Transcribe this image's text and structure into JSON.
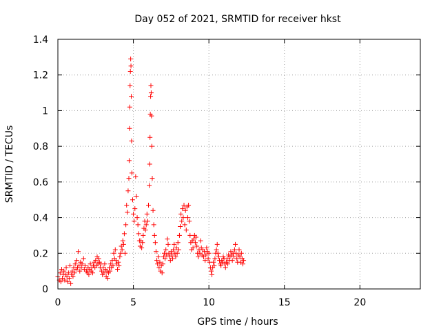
{
  "chart_data": {
    "type": "scatter",
    "title": "Day 052 of 2021, SRMTID for receiver hkst",
    "xlabel": "GPS time / hours",
    "ylabel": "SRMTID / TECUs",
    "xlim": [
      0,
      24
    ],
    "ylim": [
      0,
      1.4
    ],
    "xticks": [
      0,
      5,
      10,
      15,
      20
    ],
    "xtick_labels": [
      "0",
      "5",
      "10",
      "15",
      "20"
    ],
    "yticks": [
      0,
      0.2,
      0.4,
      0.6,
      0.8,
      1,
      1.2,
      1.4
    ],
    "ytick_labels": [
      "0",
      "0.2",
      "0.4",
      "0.6",
      "0.8",
      "1",
      "1.2",
      "1.4"
    ],
    "grid": true,
    "marker": "+",
    "marker_color": "#ff0000",
    "series": [
      {
        "name": "SRMTID",
        "description": "Estimated from the plotted scatter; values approximate",
        "points": [
          [
            0.0,
            0.07
          ],
          [
            0.1,
            0.05
          ],
          [
            0.15,
            0.09
          ],
          [
            0.2,
            0.04
          ],
          [
            0.25,
            0.11
          ],
          [
            0.3,
            0.06
          ],
          [
            0.35,
            0.08
          ],
          [
            0.4,
            0.1
          ],
          [
            0.45,
            0.05
          ],
          [
            0.5,
            0.08
          ],
          [
            0.55,
            0.12
          ],
          [
            0.6,
            0.07
          ],
          [
            0.65,
            0.04
          ],
          [
            0.7,
            0.09
          ],
          [
            0.75,
            0.06
          ],
          [
            0.8,
            0.13
          ],
          [
            0.85,
            0.03
          ],
          [
            0.9,
            0.08
          ],
          [
            0.95,
            0.1
          ],
          [
            1.0,
            0.07
          ],
          [
            1.05,
            0.12
          ],
          [
            1.1,
            0.09
          ],
          [
            1.15,
            0.14
          ],
          [
            1.2,
            0.11
          ],
          [
            1.25,
            0.16
          ],
          [
            1.3,
            0.12
          ],
          [
            1.35,
            0.21
          ],
          [
            1.4,
            0.13
          ],
          [
            1.45,
            0.1
          ],
          [
            1.5,
            0.15
          ],
          [
            1.55,
            0.12
          ],
          [
            1.6,
            0.14
          ],
          [
            1.7,
            0.17
          ],
          [
            1.75,
            0.11
          ],
          [
            1.8,
            0.13
          ],
          [
            1.9,
            0.1
          ],
          [
            1.95,
            0.09
          ],
          [
            2.0,
            0.12
          ],
          [
            2.05,
            0.08
          ],
          [
            2.1,
            0.11
          ],
          [
            2.15,
            0.14
          ],
          [
            2.2,
            0.1
          ],
          [
            2.25,
            0.12
          ],
          [
            2.3,
            0.09
          ],
          [
            2.35,
            0.13
          ],
          [
            2.4,
            0.15
          ],
          [
            2.45,
            0.12
          ],
          [
            2.5,
            0.16
          ],
          [
            2.55,
            0.13
          ],
          [
            2.6,
            0.18
          ],
          [
            2.65,
            0.14
          ],
          [
            2.7,
            0.17
          ],
          [
            2.75,
            0.15
          ],
          [
            2.8,
            0.12
          ],
          [
            2.85,
            0.14
          ],
          [
            2.9,
            0.1
          ],
          [
            2.95,
            0.08
          ],
          [
            3.0,
            0.12
          ],
          [
            3.05,
            0.09
          ],
          [
            3.1,
            0.14
          ],
          [
            3.15,
            0.11
          ],
          [
            3.2,
            0.07
          ],
          [
            3.25,
            0.1
          ],
          [
            3.3,
            0.06
          ],
          [
            3.35,
            0.09
          ],
          [
            3.4,
            0.12
          ],
          [
            3.45,
            0.1
          ],
          [
            3.5,
            0.14
          ],
          [
            3.55,
            0.12
          ],
          [
            3.6,
            0.16
          ],
          [
            3.65,
            0.13
          ],
          [
            3.7,
            0.2
          ],
          [
            3.75,
            0.17
          ],
          [
            3.8,
            0.22
          ],
          [
            3.85,
            0.16
          ],
          [
            3.9,
            0.14
          ],
          [
            3.95,
            0.11
          ],
          [
            4.0,
            0.15
          ],
          [
            4.05,
            0.13
          ],
          [
            4.1,
            0.18
          ],
          [
            4.15,
            0.2
          ],
          [
            4.2,
            0.24
          ],
          [
            4.25,
            0.22
          ],
          [
            4.3,
            0.27
          ],
          [
            4.35,
            0.25
          ],
          [
            4.4,
            0.31
          ],
          [
            4.45,
            0.2
          ],
          [
            4.5,
            0.36
          ],
          [
            4.55,
            0.47
          ],
          [
            4.6,
            0.43
          ],
          [
            4.65,
            0.55
          ],
          [
            4.7,
            0.62
          ],
          [
            4.72,
            0.72
          ],
          [
            4.74,
            0.9
          ],
          [
            4.76,
            1.02
          ],
          [
            4.78,
            1.14
          ],
          [
            4.8,
            1.22
          ],
          [
            4.82,
            1.29
          ],
          [
            4.84,
            1.25
          ],
          [
            4.86,
            1.08
          ],
          [
            4.88,
            0.83
          ],
          [
            4.9,
            0.65
          ],
          [
            4.95,
            0.5
          ],
          [
            5.0,
            0.42
          ],
          [
            5.05,
            0.38
          ],
          [
            5.1,
            0.45
          ],
          [
            5.15,
            0.63
          ],
          [
            5.2,
            0.52
          ],
          [
            5.25,
            0.4
          ],
          [
            5.3,
            0.36
          ],
          [
            5.35,
            0.31
          ],
          [
            5.4,
            0.27
          ],
          [
            5.45,
            0.24
          ],
          [
            5.5,
            0.27
          ],
          [
            5.55,
            0.23
          ],
          [
            5.6,
            0.26
          ],
          [
            5.65,
            0.3
          ],
          [
            5.7,
            0.34
          ],
          [
            5.75,
            0.38
          ],
          [
            5.8,
            0.33
          ],
          [
            5.85,
            0.36
          ],
          [
            5.9,
            0.42
          ],
          [
            5.95,
            0.38
          ],
          [
            6.0,
            0.47
          ],
          [
            6.05,
            0.58
          ],
          [
            6.08,
            0.7
          ],
          [
            6.1,
            0.85
          ],
          [
            6.12,
            0.98
          ],
          [
            6.14,
            1.08
          ],
          [
            6.16,
            1.14
          ],
          [
            6.18,
            1.1
          ],
          [
            6.2,
            0.97
          ],
          [
            6.22,
            0.8
          ],
          [
            6.25,
            0.62
          ],
          [
            6.3,
            0.44
          ],
          [
            6.35,
            0.36
          ],
          [
            6.4,
            0.3
          ],
          [
            6.45,
            0.26
          ],
          [
            6.5,
            0.21
          ],
          [
            6.55,
            0.16
          ],
          [
            6.6,
            0.14
          ],
          [
            6.65,
            0.18
          ],
          [
            6.7,
            0.12
          ],
          [
            6.75,
            0.15
          ],
          [
            6.8,
            0.1
          ],
          [
            6.85,
            0.13
          ],
          [
            6.9,
            0.09
          ],
          [
            6.95,
            0.14
          ],
          [
            7.0,
            0.18
          ],
          [
            7.05,
            0.2
          ],
          [
            7.1,
            0.17
          ],
          [
            7.15,
            0.22
          ],
          [
            7.2,
            0.19
          ],
          [
            7.25,
            0.28
          ],
          [
            7.3,
            0.25
          ],
          [
            7.35,
            0.2
          ],
          [
            7.4,
            0.18
          ],
          [
            7.45,
            0.16
          ],
          [
            7.5,
            0.21
          ],
          [
            7.55,
            0.19
          ],
          [
            7.6,
            0.17
          ],
          [
            7.65,
            0.22
          ],
          [
            7.7,
            0.25
          ],
          [
            7.75,
            0.2
          ],
          [
            7.8,
            0.18
          ],
          [
            7.85,
            0.23
          ],
          [
            7.9,
            0.2
          ],
          [
            7.95,
            0.26
          ],
          [
            8.0,
            0.22
          ],
          [
            8.05,
            0.3
          ],
          [
            8.1,
            0.35
          ],
          [
            8.15,
            0.42
          ],
          [
            8.2,
            0.38
          ],
          [
            8.25,
            0.45
          ],
          [
            8.3,
            0.4
          ],
          [
            8.35,
            0.47
          ],
          [
            8.4,
            0.36
          ],
          [
            8.45,
            0.44
          ],
          [
            8.5,
            0.33
          ],
          [
            8.55,
            0.46
          ],
          [
            8.6,
            0.4
          ],
          [
            8.65,
            0.47
          ],
          [
            8.7,
            0.38
          ],
          [
            8.75,
            0.3
          ],
          [
            8.8,
            0.26
          ],
          [
            8.85,
            0.22
          ],
          [
            8.9,
            0.27
          ],
          [
            8.95,
            0.23
          ],
          [
            9.0,
            0.28
          ],
          [
            9.05,
            0.3
          ],
          [
            9.1,
            0.26
          ],
          [
            9.15,
            0.29
          ],
          [
            9.2,
            0.24
          ],
          [
            9.25,
            0.2
          ],
          [
            9.3,
            0.18
          ],
          [
            9.35,
            0.22
          ],
          [
            9.4,
            0.2
          ],
          [
            9.45,
            0.27
          ],
          [
            9.5,
            0.23
          ],
          [
            9.55,
            0.19
          ],
          [
            9.6,
            0.22
          ],
          [
            9.65,
            0.18
          ],
          [
            9.7,
            0.21
          ],
          [
            9.75,
            0.16
          ],
          [
            9.8,
            0.19
          ],
          [
            9.85,
            0.23
          ],
          [
            9.9,
            0.21
          ],
          [
            9.95,
            0.17
          ],
          [
            10.0,
            0.2
          ],
          [
            10.05,
            0.15
          ],
          [
            10.1,
            0.12
          ],
          [
            10.15,
            0.1
          ],
          [
            10.2,
            0.08
          ],
          [
            10.25,
            0.12
          ],
          [
            10.3,
            0.15
          ],
          [
            10.35,
            0.13
          ],
          [
            10.4,
            0.17
          ],
          [
            10.45,
            0.2
          ],
          [
            10.5,
            0.22
          ],
          [
            10.55,
            0.25
          ],
          [
            10.6,
            0.2
          ],
          [
            10.65,
            0.18
          ],
          [
            10.7,
            0.16
          ],
          [
            10.75,
            0.14
          ],
          [
            10.8,
            0.13
          ],
          [
            10.85,
            0.16
          ],
          [
            10.9,
            0.15
          ],
          [
            10.95,
            0.18
          ],
          [
            11.0,
            0.17
          ],
          [
            11.05,
            0.14
          ],
          [
            11.1,
            0.12
          ],
          [
            11.15,
            0.15
          ],
          [
            11.2,
            0.17
          ],
          [
            11.25,
            0.14
          ],
          [
            11.3,
            0.19
          ],
          [
            11.35,
            0.16
          ],
          [
            11.4,
            0.18
          ],
          [
            11.45,
            0.21
          ],
          [
            11.5,
            0.19
          ],
          [
            11.55,
            0.16
          ],
          [
            11.6,
            0.2
          ],
          [
            11.65,
            0.18
          ],
          [
            11.7,
            0.22
          ],
          [
            11.75,
            0.25
          ],
          [
            11.8,
            0.2
          ],
          [
            11.85,
            0.17
          ],
          [
            11.9,
            0.15
          ],
          [
            11.95,
            0.19
          ],
          [
            12.0,
            0.22
          ],
          [
            12.05,
            0.18
          ],
          [
            12.1,
            0.15
          ],
          [
            12.15,
            0.2
          ],
          [
            12.2,
            0.17
          ],
          [
            12.25,
            0.14
          ],
          [
            12.3,
            0.16
          ]
        ]
      }
    ]
  }
}
